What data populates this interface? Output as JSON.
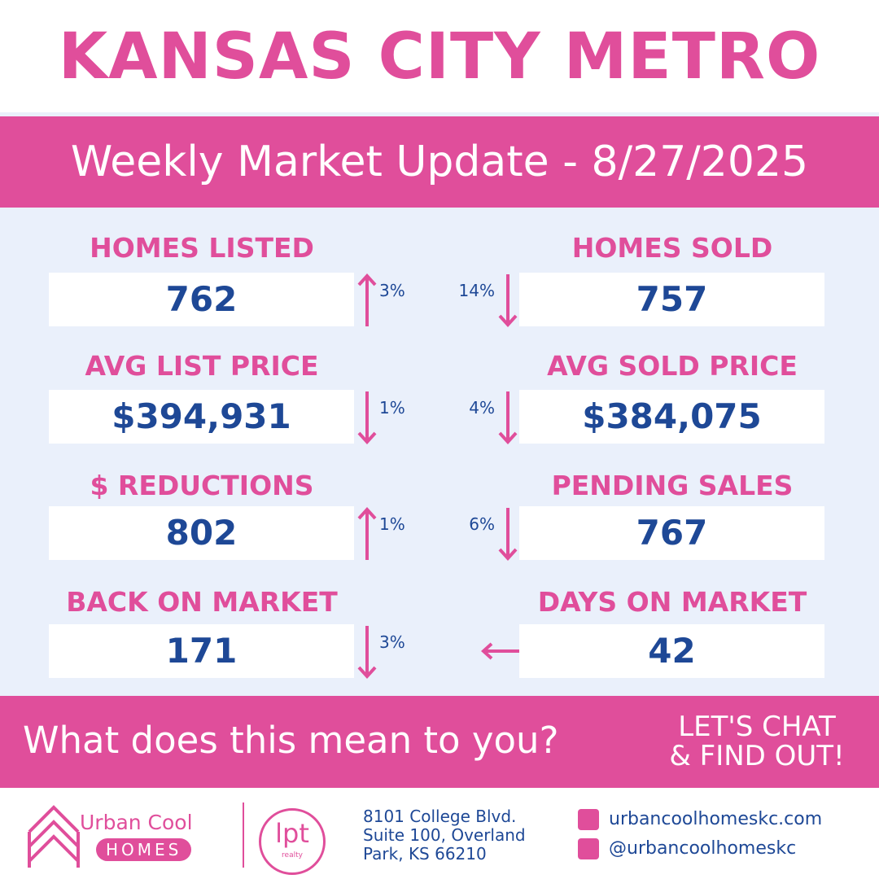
{
  "header": {
    "title": "KANSAS CITY METRO",
    "subtitle": "Weekly Market Update - 8/27/2025"
  },
  "stats": [
    {
      "label": "HOMES LISTED",
      "value": "762",
      "change": "3%",
      "direction": "up"
    },
    {
      "label": "HOMES SOLD",
      "value": "757",
      "change": "14%",
      "direction": "down"
    },
    {
      "label": "AVG LIST PRICE",
      "value": "$394,931",
      "change": "1%",
      "direction": "down"
    },
    {
      "label": "AVG SOLD PRICE",
      "value": "$384,075",
      "change": "4%",
      "direction": "down"
    },
    {
      "label": "$ REDUCTIONS",
      "value": "802",
      "change": "1%",
      "direction": "up"
    },
    {
      "label": "PENDING SALES",
      "value": "767",
      "change": "6%",
      "direction": "down"
    },
    {
      "label": "BACK ON MARKET",
      "value": "171",
      "change": "3%",
      "direction": "down"
    },
    {
      "label": "DAYS ON MARKET",
      "value": "42",
      "direction": "left"
    }
  ],
  "cta": {
    "question": "What does this mean to you?",
    "action": [
      "LET'S CHAT",
      "& FIND OUT!"
    ]
  },
  "footer": {
    "brand": "Urban Cool",
    "brand_sub": "HOMES",
    "partner": "lpt",
    "partner_sub": "realty",
    "address": [
      "8101 College Blvd.",
      "Suite 100, Overland",
      "Park, KS 66210"
    ],
    "website": "urbancoolhomeskc.com",
    "social": "@urbancoolhomeskc"
  }
}
